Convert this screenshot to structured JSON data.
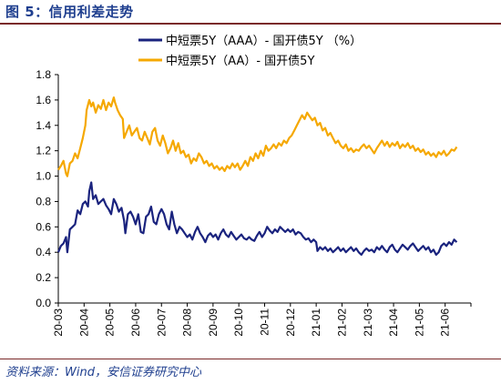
{
  "figure": {
    "title": "图 5：信用利差走势",
    "source": "资料来源：Wind，安信证券研究中心"
  },
  "chart_data": {
    "type": "line",
    "title": "图 5：信用利差走势",
    "xlabel": "",
    "ylabel": "",
    "ylim": [
      0,
      1.8
    ],
    "yticks": [
      "0.0",
      "0.2",
      "0.4",
      "0.6",
      "0.8",
      "1.0",
      "1.2",
      "1.4",
      "1.6",
      "1.8"
    ],
    "xticks": [
      "20-03",
      "20-04",
      "20-05",
      "20-06",
      "20-07",
      "20-08",
      "20-09",
      "20-10",
      "20-11",
      "20-12",
      "21-01",
      "21-02",
      "21-03",
      "21-04",
      "21-05",
      "21-06"
    ],
    "grid": false,
    "legend_position": "top-center",
    "x_unit": "month index (0 = 20-03)",
    "series": [
      {
        "name": "中短票5Y（AAA）- 国开债5Y （%）",
        "color": "#1a237e",
        "points": [
          [
            0,
            0.4
          ],
          [
            0.1,
            0.45
          ],
          [
            0.2,
            0.47
          ],
          [
            0.3,
            0.52
          ],
          [
            0.35,
            0.4
          ],
          [
            0.45,
            0.58
          ],
          [
            0.55,
            0.6
          ],
          [
            0.65,
            0.62
          ],
          [
            0.75,
            0.73
          ],
          [
            0.85,
            0.7
          ],
          [
            0.95,
            0.78
          ],
          [
            1.05,
            0.8
          ],
          [
            1.15,
            0.76
          ],
          [
            1.2,
            0.88
          ],
          [
            1.28,
            0.95
          ],
          [
            1.35,
            0.82
          ],
          [
            1.45,
            0.85
          ],
          [
            1.55,
            0.78
          ],
          [
            1.65,
            0.8
          ],
          [
            1.75,
            0.82
          ],
          [
            1.85,
            0.77
          ],
          [
            1.95,
            0.74
          ],
          [
            2.05,
            0.7
          ],
          [
            2.15,
            0.82
          ],
          [
            2.25,
            0.78
          ],
          [
            2.35,
            0.72
          ],
          [
            2.45,
            0.75
          ],
          [
            2.55,
            0.65
          ],
          [
            2.6,
            0.55
          ],
          [
            2.7,
            0.7
          ],
          [
            2.8,
            0.72
          ],
          [
            2.9,
            0.68
          ],
          [
            3.0,
            0.62
          ],
          [
            3.1,
            0.7
          ],
          [
            3.2,
            0.56
          ],
          [
            3.3,
            0.55
          ],
          [
            3.4,
            0.68
          ],
          [
            3.5,
            0.7
          ],
          [
            3.6,
            0.76
          ],
          [
            3.7,
            0.64
          ],
          [
            3.8,
            0.62
          ],
          [
            3.9,
            0.7
          ],
          [
            4.0,
            0.74
          ],
          [
            4.1,
            0.7
          ],
          [
            4.2,
            0.62
          ],
          [
            4.3,
            0.58
          ],
          [
            4.4,
            0.72
          ],
          [
            4.5,
            0.62
          ],
          [
            4.6,
            0.55
          ],
          [
            4.7,
            0.6
          ],
          [
            4.8,
            0.58
          ],
          [
            4.9,
            0.55
          ],
          [
            5.0,
            0.52
          ],
          [
            5.1,
            0.54
          ],
          [
            5.2,
            0.5
          ],
          [
            5.3,
            0.56
          ],
          [
            5.4,
            0.6
          ],
          [
            5.5,
            0.55
          ],
          [
            5.6,
            0.52
          ],
          [
            5.7,
            0.48
          ],
          [
            5.8,
            0.53
          ],
          [
            5.9,
            0.55
          ],
          [
            6.0,
            0.52
          ],
          [
            6.1,
            0.54
          ],
          [
            6.2,
            0.5
          ],
          [
            6.3,
            0.55
          ],
          [
            6.4,
            0.58
          ],
          [
            6.5,
            0.54
          ],
          [
            6.6,
            0.52
          ],
          [
            6.7,
            0.56
          ],
          [
            6.8,
            0.53
          ],
          [
            6.9,
            0.5
          ],
          [
            7.0,
            0.52
          ],
          [
            7.1,
            0.54
          ],
          [
            7.2,
            0.51
          ],
          [
            7.3,
            0.5
          ],
          [
            7.4,
            0.52
          ],
          [
            7.5,
            0.5
          ],
          [
            7.6,
            0.49
          ],
          [
            7.7,
            0.53
          ],
          [
            7.8,
            0.56
          ],
          [
            7.9,
            0.52
          ],
          [
            8.0,
            0.55
          ],
          [
            8.1,
            0.6
          ],
          [
            8.2,
            0.57
          ],
          [
            8.3,
            0.55
          ],
          [
            8.4,
            0.58
          ],
          [
            8.5,
            0.56
          ],
          [
            8.6,
            0.6
          ],
          [
            8.7,
            0.58
          ],
          [
            8.8,
            0.56
          ],
          [
            8.9,
            0.58
          ],
          [
            9.0,
            0.56
          ],
          [
            9.1,
            0.58
          ],
          [
            9.2,
            0.54
          ],
          [
            9.3,
            0.56
          ],
          [
            9.4,
            0.55
          ],
          [
            9.5,
            0.52
          ],
          [
            9.6,
            0.5
          ],
          [
            9.7,
            0.51
          ],
          [
            9.8,
            0.48
          ],
          [
            9.9,
            0.5
          ],
          [
            10.0,
            0.48
          ],
          [
            10.05,
            0.41
          ],
          [
            10.15,
            0.44
          ],
          [
            10.25,
            0.42
          ],
          [
            10.35,
            0.44
          ],
          [
            10.45,
            0.41
          ],
          [
            10.55,
            0.43
          ],
          [
            10.65,
            0.4
          ],
          [
            10.75,
            0.42
          ],
          [
            10.85,
            0.44
          ],
          [
            10.95,
            0.41
          ],
          [
            11.05,
            0.43
          ],
          [
            11.15,
            0.4
          ],
          [
            11.25,
            0.42
          ],
          [
            11.35,
            0.44
          ],
          [
            11.45,
            0.41
          ],
          [
            11.55,
            0.43
          ],
          [
            11.65,
            0.4
          ],
          [
            11.75,
            0.38
          ],
          [
            11.85,
            0.41
          ],
          [
            11.95,
            0.43
          ],
          [
            12.05,
            0.41
          ],
          [
            12.15,
            0.42
          ],
          [
            12.25,
            0.4
          ],
          [
            12.35,
            0.44
          ],
          [
            12.45,
            0.42
          ],
          [
            12.55,
            0.45
          ],
          [
            12.65,
            0.42
          ],
          [
            12.75,
            0.4
          ],
          [
            12.85,
            0.44
          ],
          [
            12.95,
            0.46
          ],
          [
            13.05,
            0.42
          ],
          [
            13.15,
            0.4
          ],
          [
            13.25,
            0.43
          ],
          [
            13.35,
            0.46
          ],
          [
            13.45,
            0.44
          ],
          [
            13.55,
            0.42
          ],
          [
            13.65,
            0.45
          ],
          [
            13.75,
            0.47
          ],
          [
            13.85,
            0.44
          ],
          [
            13.95,
            0.41
          ],
          [
            14.05,
            0.43
          ],
          [
            14.15,
            0.45
          ],
          [
            14.25,
            0.42
          ],
          [
            14.35,
            0.44
          ],
          [
            14.45,
            0.4
          ],
          [
            14.55,
            0.42
          ],
          [
            14.65,
            0.38
          ],
          [
            14.75,
            0.4
          ],
          [
            14.85,
            0.45
          ],
          [
            14.95,
            0.47
          ],
          [
            15.05,
            0.45
          ],
          [
            15.15,
            0.48
          ],
          [
            15.25,
            0.46
          ],
          [
            15.35,
            0.5
          ],
          [
            15.45,
            0.48
          ]
        ]
      },
      {
        "name": "中短票5Y（AA）- 国开债5Y",
        "color": "#f5a800",
        "points": [
          [
            0,
            1.05
          ],
          [
            0.1,
            1.08
          ],
          [
            0.2,
            1.12
          ],
          [
            0.3,
            1.02
          ],
          [
            0.35,
            1.0
          ],
          [
            0.45,
            1.1
          ],
          [
            0.55,
            1.12
          ],
          [
            0.65,
            1.18
          ],
          [
            0.75,
            1.14
          ],
          [
            0.85,
            1.22
          ],
          [
            0.95,
            1.3
          ],
          [
            1.05,
            1.4
          ],
          [
            1.1,
            1.52
          ],
          [
            1.2,
            1.6
          ],
          [
            1.28,
            1.55
          ],
          [
            1.35,
            1.58
          ],
          [
            1.45,
            1.5
          ],
          [
            1.55,
            1.56
          ],
          [
            1.65,
            1.53
          ],
          [
            1.75,
            1.6
          ],
          [
            1.85,
            1.52
          ],
          [
            1.95,
            1.58
          ],
          [
            2.05,
            1.55
          ],
          [
            2.15,
            1.62
          ],
          [
            2.2,
            1.58
          ],
          [
            2.3,
            1.52
          ],
          [
            2.4,
            1.48
          ],
          [
            2.5,
            1.45
          ],
          [
            2.55,
            1.3
          ],
          [
            2.65,
            1.35
          ],
          [
            2.75,
            1.4
          ],
          [
            2.85,
            1.32
          ],
          [
            2.95,
            1.35
          ],
          [
            3.05,
            1.38
          ],
          [
            3.15,
            1.3
          ],
          [
            3.25,
            1.28
          ],
          [
            3.35,
            1.35
          ],
          [
            3.45,
            1.3
          ],
          [
            3.55,
            1.25
          ],
          [
            3.65,
            1.35
          ],
          [
            3.75,
            1.38
          ],
          [
            3.85,
            1.28
          ],
          [
            3.95,
            1.24
          ],
          [
            4.05,
            1.32
          ],
          [
            4.15,
            1.26
          ],
          [
            4.25,
            1.18
          ],
          [
            4.35,
            1.22
          ],
          [
            4.45,
            1.28
          ],
          [
            4.55,
            1.2
          ],
          [
            4.65,
            1.26
          ],
          [
            4.75,
            1.18
          ],
          [
            4.85,
            1.2
          ],
          [
            4.95,
            1.15
          ],
          [
            5.05,
            1.17
          ],
          [
            5.15,
            1.1
          ],
          [
            5.25,
            1.14
          ],
          [
            5.35,
            1.12
          ],
          [
            5.45,
            1.18
          ],
          [
            5.55,
            1.15
          ],
          [
            5.65,
            1.1
          ],
          [
            5.75,
            1.12
          ],
          [
            5.85,
            1.08
          ],
          [
            5.95,
            1.1
          ],
          [
            6.05,
            1.06
          ],
          [
            6.15,
            1.08
          ],
          [
            6.25,
            1.05
          ],
          [
            6.35,
            1.07
          ],
          [
            6.45,
            1.04
          ],
          [
            6.55,
            1.08
          ],
          [
            6.65,
            1.06
          ],
          [
            6.75,
            1.1
          ],
          [
            6.85,
            1.07
          ],
          [
            6.95,
            1.1
          ],
          [
            7.05,
            1.05
          ],
          [
            7.15,
            1.08
          ],
          [
            7.25,
            1.12
          ],
          [
            7.35,
            1.08
          ],
          [
            7.45,
            1.15
          ],
          [
            7.55,
            1.12
          ],
          [
            7.65,
            1.18
          ],
          [
            7.75,
            1.14
          ],
          [
            7.85,
            1.2
          ],
          [
            7.95,
            1.16
          ],
          [
            8.05,
            1.24
          ],
          [
            8.15,
            1.2
          ],
          [
            8.25,
            1.22
          ],
          [
            8.35,
            1.25
          ],
          [
            8.45,
            1.22
          ],
          [
            8.55,
            1.26
          ],
          [
            8.65,
            1.24
          ],
          [
            8.75,
            1.28
          ],
          [
            8.85,
            1.26
          ],
          [
            8.95,
            1.3
          ],
          [
            9.05,
            1.32
          ],
          [
            9.15,
            1.36
          ],
          [
            9.25,
            1.4
          ],
          [
            9.35,
            1.44
          ],
          [
            9.45,
            1.48
          ],
          [
            9.55,
            1.45
          ],
          [
            9.65,
            1.5
          ],
          [
            9.75,
            1.47
          ],
          [
            9.85,
            1.44
          ],
          [
            9.95,
            1.46
          ],
          [
            10.05,
            1.4
          ],
          [
            10.15,
            1.42
          ],
          [
            10.25,
            1.36
          ],
          [
            10.35,
            1.38
          ],
          [
            10.45,
            1.32
          ],
          [
            10.55,
            1.34
          ],
          [
            10.65,
            1.3
          ],
          [
            10.75,
            1.26
          ],
          [
            10.85,
            1.28
          ],
          [
            10.95,
            1.24
          ],
          [
            11.05,
            1.22
          ],
          [
            11.15,
            1.25
          ],
          [
            11.25,
            1.2
          ],
          [
            11.35,
            1.22
          ],
          [
            11.45,
            1.19
          ],
          [
            11.55,
            1.21
          ],
          [
            11.65,
            1.2
          ],
          [
            11.75,
            1.23
          ],
          [
            11.85,
            1.25
          ],
          [
            11.95,
            1.22
          ],
          [
            12.05,
            1.24
          ],
          [
            12.15,
            1.21
          ],
          [
            12.25,
            1.18
          ],
          [
            12.35,
            1.22
          ],
          [
            12.45,
            1.25
          ],
          [
            12.55,
            1.28
          ],
          [
            12.65,
            1.24
          ],
          [
            12.75,
            1.27
          ],
          [
            12.85,
            1.23
          ],
          [
            12.95,
            1.26
          ],
          [
            13.05,
            1.24
          ],
          [
            13.15,
            1.27
          ],
          [
            13.25,
            1.22
          ],
          [
            13.35,
            1.25
          ],
          [
            13.45,
            1.23
          ],
          [
            13.55,
            1.26
          ],
          [
            13.65,
            1.22
          ],
          [
            13.75,
            1.24
          ],
          [
            13.85,
            1.2
          ],
          [
            13.95,
            1.22
          ],
          [
            14.05,
            1.19
          ],
          [
            14.15,
            1.21
          ],
          [
            14.25,
            1.17
          ],
          [
            14.35,
            1.19
          ],
          [
            14.45,
            1.16
          ],
          [
            14.55,
            1.18
          ],
          [
            14.65,
            1.15
          ],
          [
            14.75,
            1.19
          ],
          [
            14.85,
            1.17
          ],
          [
            14.95,
            1.2
          ],
          [
            15.05,
            1.16
          ],
          [
            15.15,
            1.18
          ],
          [
            15.25,
            1.21
          ],
          [
            15.35,
            1.2
          ],
          [
            15.45,
            1.23
          ]
        ]
      }
    ]
  }
}
